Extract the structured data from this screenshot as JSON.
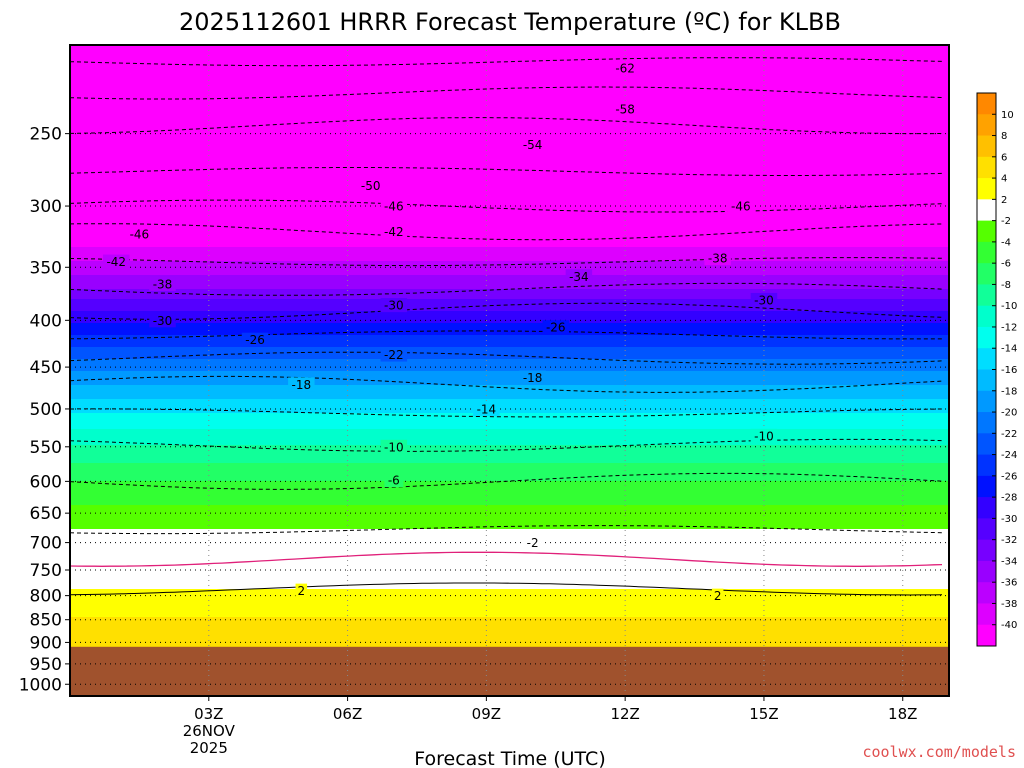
{
  "chart_data": {
    "type": "heatmap",
    "title": "2025112601 HRRR Forecast Temperature (ºC) for KLBB",
    "xlabel": "Forecast Time (UTC)",
    "ylabel": "",
    "credit": "coolwx.com/models",
    "x_ticks": [
      {
        "hour": 3,
        "lines": [
          "03Z",
          "26NOV",
          "2025"
        ]
      },
      {
        "hour": 6,
        "lines": [
          "06Z"
        ]
      },
      {
        "hour": 9,
        "lines": [
          "09Z"
        ]
      },
      {
        "hour": 12,
        "lines": [
          "12Z"
        ]
      },
      {
        "hour": 15,
        "lines": [
          "15Z"
        ]
      },
      {
        "hour": 18,
        "lines": [
          "18Z"
        ]
      }
    ],
    "x_range_hours": [
      0,
      19
    ],
    "y_ticks_hpa": [
      250,
      300,
      350,
      400,
      450,
      500,
      550,
      600,
      650,
      700,
      750,
      800,
      850,
      900,
      950,
      1000
    ],
    "y_range_hpa": [
      200,
      1030
    ],
    "ground_level_hpa": 910,
    "grid": "dotted",
    "isotherm_profile": [
      {
        "p": 200,
        "t": -64
      },
      {
        "p": 230,
        "t": -57
      },
      {
        "p": 250,
        "t": -53
      },
      {
        "p": 275,
        "t": -50
      },
      {
        "p": 300,
        "t": -46
      },
      {
        "p": 320,
        "t": -42
      },
      {
        "p": 345,
        "t": -38
      },
      {
        "p": 370,
        "t": -34
      },
      {
        "p": 385,
        "t": -31
      },
      {
        "p": 415,
        "t": -26
      },
      {
        "p": 440,
        "t": -22
      },
      {
        "p": 470,
        "t": -18
      },
      {
        "p": 505,
        "t": -14
      },
      {
        "p": 548,
        "t": -10
      },
      {
        "p": 600,
        "t": -6
      },
      {
        "p": 655,
        "t": -3
      },
      {
        "p": 700,
        "t": -1
      },
      {
        "p": 760,
        "t": 1
      },
      {
        "p": 800,
        "t": 2.5
      },
      {
        "p": 860,
        "t": 4.5
      },
      {
        "p": 910,
        "t": 6
      }
    ],
    "contour_labels": [
      {
        "hour": 12.0,
        "p": 212,
        "t": "-62"
      },
      {
        "hour": 12.0,
        "p": 235,
        "t": "-58"
      },
      {
        "hour": 10.0,
        "p": 257,
        "t": "-54"
      },
      {
        "hour": 6.5,
        "p": 285,
        "t": "-50"
      },
      {
        "hour": 7.0,
        "p": 300,
        "t": "-46"
      },
      {
        "hour": 14.5,
        "p": 300,
        "t": "-46"
      },
      {
        "hour": 7.0,
        "p": 320,
        "t": "-42"
      },
      {
        "hour": 1.5,
        "p": 322,
        "t": "-46"
      },
      {
        "hour": 1.0,
        "p": 345,
        "t": "-42"
      },
      {
        "hour": 14.0,
        "p": 342,
        "t": "-38"
      },
      {
        "hour": 2.0,
        "p": 365,
        "t": "-38"
      },
      {
        "hour": 11.0,
        "p": 358,
        "t": "-34"
      },
      {
        "hour": 7.0,
        "p": 385,
        "t": "-30"
      },
      {
        "hour": 15.0,
        "p": 380,
        "t": "-30"
      },
      {
        "hour": 2.0,
        "p": 400,
        "t": "-30"
      },
      {
        "hour": 10.5,
        "p": 407,
        "t": "-26"
      },
      {
        "hour": 4.0,
        "p": 420,
        "t": "-26"
      },
      {
        "hour": 7.0,
        "p": 436,
        "t": "-22"
      },
      {
        "hour": 5.0,
        "p": 470,
        "t": "-18"
      },
      {
        "hour": 10.0,
        "p": 462,
        "t": "-18"
      },
      {
        "hour": 9.0,
        "p": 500,
        "t": "-14"
      },
      {
        "hour": 7.0,
        "p": 550,
        "t": "-10"
      },
      {
        "hour": 15.0,
        "p": 535,
        "t": "-10"
      },
      {
        "hour": 7.0,
        "p": 598,
        "t": "-6"
      },
      {
        "hour": 10.0,
        "p": 700,
        "t": "-2"
      },
      {
        "hour": 5.0,
        "p": 790,
        "t": "2"
      },
      {
        "hour": 14.0,
        "p": 800,
        "t": "2"
      }
    ],
    "colorbar": {
      "labels": [
        "10",
        "8",
        "6",
        "4",
        "2",
        "-2",
        "-4",
        "-6",
        "-8",
        "-10",
        "-12",
        "-14",
        "-16",
        "-18",
        "-20",
        "-22",
        "-24",
        "-26",
        "-28",
        "-30",
        "-32",
        "-34",
        "-36",
        "-38",
        "-40"
      ],
      "bins": [
        {
          "lo": 10,
          "color": "#ff8800"
        },
        {
          "lo": 8,
          "color": "#ffa200"
        },
        {
          "lo": 6,
          "color": "#ffc000"
        },
        {
          "lo": 4,
          "color": "#ffe000"
        },
        {
          "lo": 2,
          "color": "#ffff00"
        },
        {
          "lo": -2,
          "color": "#ffffff"
        },
        {
          "lo": -4,
          "color": "#55ff00"
        },
        {
          "lo": -6,
          "color": "#33ff33"
        },
        {
          "lo": -8,
          "color": "#22ff66"
        },
        {
          "lo": -10,
          "color": "#11ff99"
        },
        {
          "lo": -12,
          "color": "#00ffcc"
        },
        {
          "lo": -14,
          "color": "#00ffee"
        },
        {
          "lo": -16,
          "color": "#00ddff"
        },
        {
          "lo": -18,
          "color": "#00bbff"
        },
        {
          "lo": -20,
          "color": "#0099ff"
        },
        {
          "lo": -22,
          "color": "#0077ff"
        },
        {
          "lo": -24,
          "color": "#0055ff"
        },
        {
          "lo": -26,
          "color": "#0033ff"
        },
        {
          "lo": -28,
          "color": "#0011ff"
        },
        {
          "lo": -30,
          "color": "#3300ff"
        },
        {
          "lo": -32,
          "color": "#5500ff"
        },
        {
          "lo": -34,
          "color": "#7700ff"
        },
        {
          "lo": -36,
          "color": "#9900ff"
        },
        {
          "lo": -38,
          "color": "#bb00ff"
        },
        {
          "lo": -40,
          "color": "#dd00ff"
        },
        {
          "lo": -999,
          "color": "#ff00ff"
        }
      ]
    },
    "ground_color": "#a0522d",
    "zero_line_color": "#e0207a",
    "credit_color": "#e05050"
  }
}
